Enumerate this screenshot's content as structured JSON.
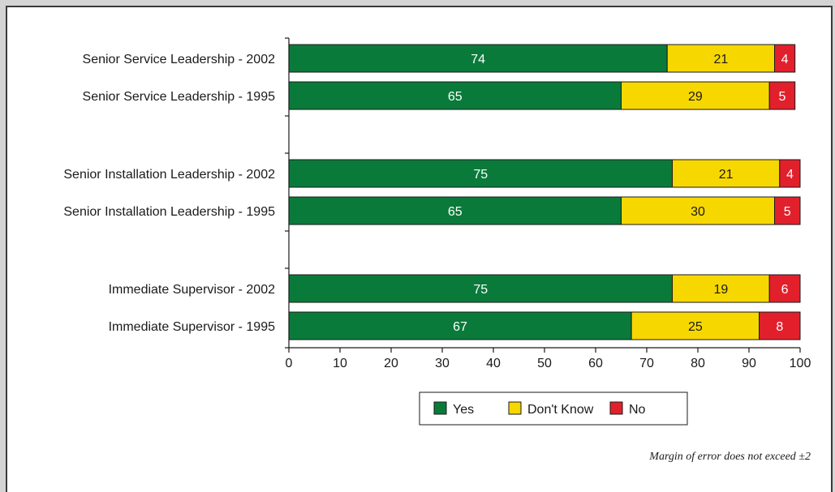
{
  "chart_data": {
    "type": "bar",
    "orientation": "horizontal",
    "stacked": true,
    "categories": [
      "Senior Service Leadership - 2002",
      "Senior Service Leadership - 1995",
      "Senior Installation Leadership - 2002",
      "Senior Installation Leadership - 1995",
      "Immediate Supervisor - 2002",
      "Immediate Supervisor - 1995"
    ],
    "series": [
      {
        "name": "Yes",
        "color": "#0a7a3a",
        "label_color": "#ffffff",
        "values": [
          74,
          65,
          75,
          65,
          75,
          67
        ]
      },
      {
        "name": "Don't Know",
        "color": "#f7d700",
        "label_color": "#1a1a1a",
        "values": [
          21,
          29,
          21,
          30,
          19,
          25
        ]
      },
      {
        "name": "No",
        "color": "#e2202c",
        "label_color": "#ffffff",
        "values": [
          4,
          5,
          4,
          5,
          6,
          8
        ]
      }
    ],
    "xlim": [
      0,
      100
    ],
    "xticks": [
      0,
      10,
      20,
      30,
      40,
      50,
      60,
      70,
      80,
      90,
      100
    ],
    "grid": false,
    "legend_position": "bottom-center"
  },
  "note": "Margin of error does not exceed ±2"
}
